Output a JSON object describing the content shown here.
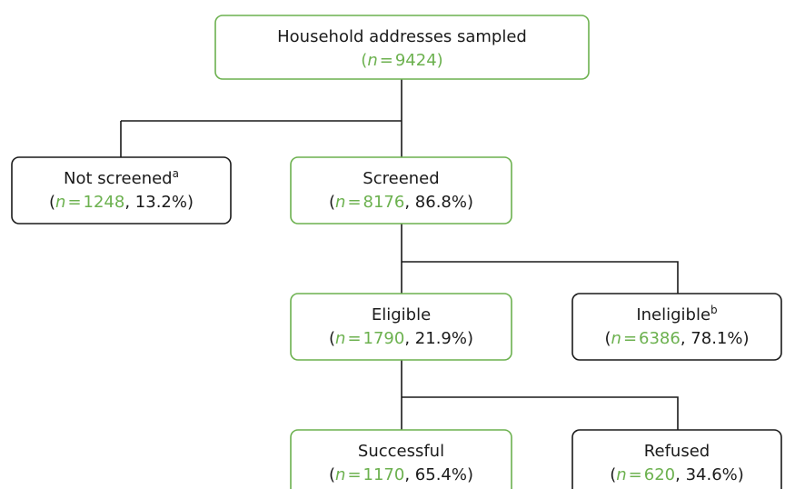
{
  "symbols": {
    "open": "(",
    "n": "n",
    "equals": "=",
    "sep": ", ",
    "close": ")"
  },
  "nodes": [
    {
      "label": "Household addresses sampled",
      "count": 9424
    },
    {
      "label": "Not screened",
      "note": "a",
      "count": 1248,
      "share": "13.2%"
    },
    {
      "label": "Screened",
      "count": 8176,
      "share": "86.8%"
    },
    {
      "label": "Eligible",
      "count": 1790,
      "share": "21.9%"
    },
    {
      "label": "Ineligible",
      "note": "b",
      "count": 6386,
      "share": "78.1%"
    },
    {
      "label": "Successful",
      "count": 1170,
      "share": "65.4%"
    },
    {
      "label": "Refused",
      "count": 620,
      "share": "34.6%"
    }
  ]
}
